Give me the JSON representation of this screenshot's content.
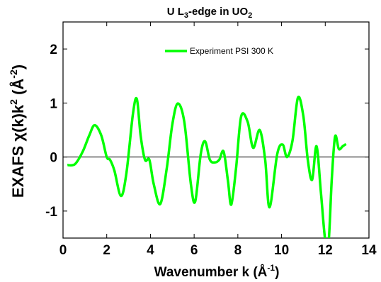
{
  "chart_data": {
    "type": "line",
    "title": {
      "text": "U L",
      "sub": "3",
      "text2": "-edge in UO",
      "sub2": "2"
    },
    "xlabel": {
      "text": "Wavenumber k (Å",
      "sup": "-1",
      "tail": ")"
    },
    "ylabel": {
      "text": "EXAFS χ(k)k",
      "sup": "2",
      "mid": " (Å",
      "sup2": "-2",
      "tail": ")"
    },
    "xlim": [
      0,
      14
    ],
    "ylim": [
      -1.5,
      2.5
    ],
    "xticks": [
      0,
      2,
      4,
      6,
      8,
      10,
      12,
      14
    ],
    "yticks": [
      -1,
      0,
      1,
      2
    ],
    "ytick_labels": [
      "-1",
      "0",
      "1",
      "2"
    ],
    "zero_line": true,
    "legend_position": "top-right",
    "series": [
      {
        "name": "Experiment PSI 300 K",
        "color": "#00ff00",
        "x": [
          0.2,
          0.55,
          0.9,
          1.2,
          1.45,
          1.75,
          2.0,
          2.15,
          2.35,
          2.65,
          2.9,
          3.2,
          3.38,
          3.55,
          3.75,
          3.95,
          4.15,
          4.45,
          4.75,
          5.0,
          5.25,
          5.55,
          5.85,
          6.05,
          6.3,
          6.5,
          6.72,
          6.95,
          7.15,
          7.35,
          7.55,
          7.7,
          7.92,
          8.15,
          8.45,
          8.7,
          9.0,
          9.25,
          9.45,
          9.8,
          10.05,
          10.25,
          10.5,
          10.75,
          11.0,
          11.2,
          11.4,
          11.6,
          11.8,
          12.0,
          12.15,
          12.3,
          12.45,
          12.62,
          12.8,
          12.95
        ],
        "y": [
          -0.15,
          -0.13,
          0.1,
          0.4,
          0.59,
          0.4,
          0.0,
          -0.05,
          -0.25,
          -0.72,
          -0.3,
          0.8,
          1.07,
          0.4,
          -0.05,
          -0.05,
          -0.5,
          -0.87,
          -0.2,
          0.6,
          0.99,
          0.65,
          -0.5,
          -0.82,
          0.05,
          0.29,
          -0.05,
          -0.1,
          -0.05,
          0.1,
          -0.45,
          -0.88,
          -0.2,
          0.75,
          0.65,
          0.17,
          0.5,
          -0.05,
          -0.93,
          0.05,
          0.23,
          0.0,
          0.3,
          1.1,
          0.75,
          -0.05,
          -0.42,
          0.2,
          -0.65,
          -1.55,
          -1.6,
          -0.4,
          0.38,
          0.15,
          0.2,
          0.24
        ]
      }
    ]
  }
}
